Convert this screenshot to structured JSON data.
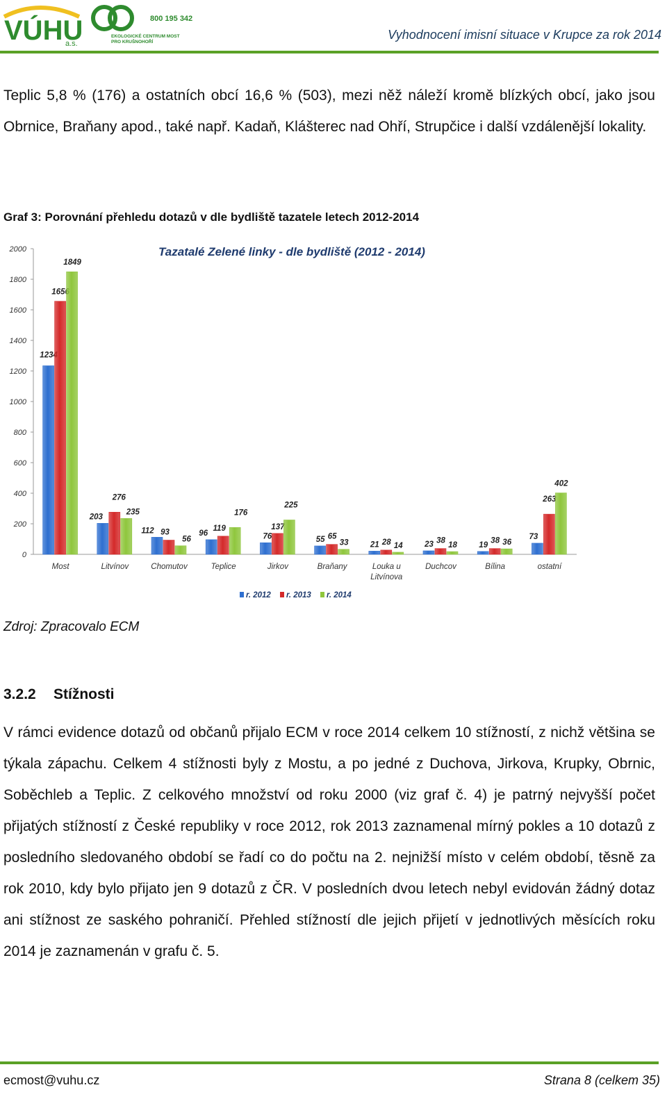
{
  "header": {
    "logo_vuhu": "VÚHU",
    "logo_vuhu_sub": "a.s.",
    "logo_ecm_phone": "800 195 342",
    "logo_ecm_line1": "EKOLOGICKÉ CENTRUM MOST",
    "logo_ecm_line2": "PRO KRUŠNOHOŘÍ",
    "title": "Vyhodnocení imisní situace v Krupce za rok 2014",
    "rule_color": "#5aa126"
  },
  "paragraph_1": "Teplic 5,8 % (176) a ostatních obcí 16,6 % (503), mezi něž náleží kromě blízkých obcí, jako jsou Obrnice, Braňany apod., také např. Kadaň, Klášterec nad Ohří, Strupčice i další vzdálenější lokality.",
  "figure_caption": "Graf 3: Porovnání přehledu dotazů v dle bydliště tazatele letech 2012-2014",
  "chart_data": {
    "type": "bar",
    "title": "Tazatalé Zelené linky - dle bydliště (2012 - 2014)",
    "categories": [
      "Most",
      "Litvínov",
      "Chomutov",
      "Teplice",
      "Jirkov",
      "Braňany",
      "Louka u Litvínova",
      "Duchcov",
      "Bílina",
      "ostatní"
    ],
    "series": [
      {
        "name": "r. 2012",
        "color": "#2e6fd0",
        "values": [
          1234,
          203,
          112,
          96,
          76,
          55,
          21,
          23,
          19,
          73
        ]
      },
      {
        "name": "r. 2013",
        "color": "#d42a2a",
        "values": [
          1656,
          276,
          93,
          119,
          137,
          65,
          28,
          38,
          38,
          263
        ]
      },
      {
        "name": "r. 2014",
        "color": "#8fc63d",
        "values": [
          1849,
          235,
          56,
          176,
          225,
          33,
          14,
          18,
          36,
          402
        ]
      }
    ],
    "yticks": [
      "0",
      "200",
      "400",
      "600",
      "800",
      "1000",
      "1200",
      "1400",
      "1600",
      "1800",
      "2000"
    ],
    "ylim": [
      0,
      2000
    ],
    "xlabel": "",
    "ylabel": "",
    "legend_position": "bottom",
    "grid": false
  },
  "source": "Zdroj: Zpracovalo ECM",
  "section": {
    "number": "3.2.2",
    "title": "Stížnosti"
  },
  "paragraph_2": "V rámci evidence dotazů od občanů přijalo ECM v roce 2014 celkem 10 stížností, z nichž většina se týkala zápachu. Celkem 4 stížnosti byly z Mostu, a po jedné z Duchova, Jirkova, Krupky, Obrnic, Soběchleb a Teplic. Z celkového množství od roku 2000 (viz graf č. 4) je patrný nejvyšší počet přijatých stížností z České republiky v roce 2012, rok 2013 zaznamenal mírný pokles a 10 dotazů z posledního sledovaného období se řadí co do počtu na 2. nejnižší místo v celém období, těsně za rok 2010, kdy bylo přijato jen 9 dotazů z ČR. V posledních dvou letech nebyl evidován žádný dotaz ani stížnost ze saského pohraničí. Přehled stížností dle jejich přijetí v jednotlivých měsících roku 2014 je zaznamenán v grafu č. 5.",
  "footer": {
    "email": "ecmost@vuhu.cz",
    "page": "Strana 8 (celkem 35)"
  }
}
